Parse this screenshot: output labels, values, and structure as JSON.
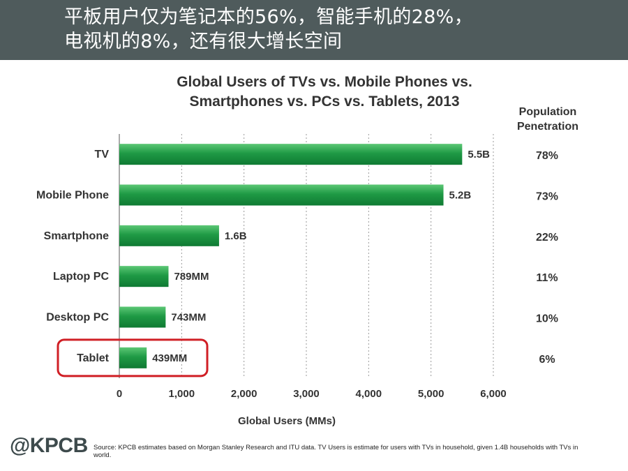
{
  "banner": {
    "line1": "平板用户仅为笔记本的56%，智能手机的28%，",
    "line2": "电视机的8%，还有很大增长空间"
  },
  "chart_data": {
    "type": "bar",
    "orientation": "horizontal",
    "title_lines": [
      "Global Users of TVs vs. Mobile Phones vs.",
      "Smartphones vs. PCs vs. Tablets, 2013"
    ],
    "xlabel": "Global Users (MMs)",
    "ylabel": "",
    "xlim": [
      0,
      6000
    ],
    "xticks": [
      0,
      1000,
      2000,
      3000,
      4000,
      5000,
      6000
    ],
    "xtick_labels": [
      "0",
      "1,000",
      "2,000",
      "3,000",
      "4,000",
      "5,000",
      "6,000"
    ],
    "categories": [
      "TV",
      "Mobile Phone",
      "Smartphone",
      "Laptop PC",
      "Desktop PC",
      "Tablet"
    ],
    "values": [
      5500,
      5200,
      1600,
      789,
      743,
      439
    ],
    "data_labels": [
      "5.5B",
      "5.2B",
      "1.6B",
      "789MM",
      "743MM",
      "439MM"
    ],
    "penetration_header": [
      "Population",
      "Penetration"
    ],
    "penetration": [
      "78%",
      "73%",
      "22%",
      "11%",
      "10%",
      "6%"
    ],
    "highlight": "Tablet",
    "grid": "vertical dotted",
    "colors": {
      "bar": "#1f9a45",
      "highlight_box": "#d01f25"
    }
  },
  "footer": {
    "logo": "@KPCB",
    "source": "Source: KPCB estimates based on Morgan Stanley Research and ITU data. TV Users is estimate for users with TVs in household, given 1.4B households with TVs in world."
  }
}
